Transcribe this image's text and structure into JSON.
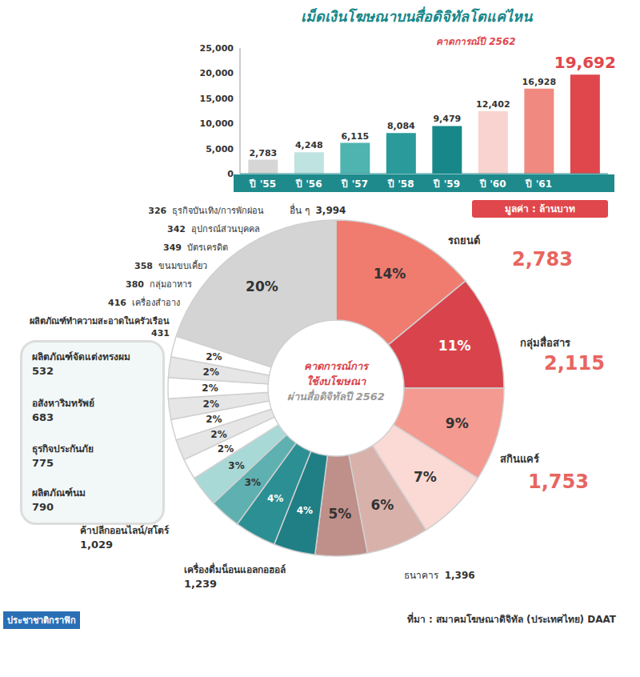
{
  "title": "เม็ดเงินโฆษณาบนสื่อดิจิทัลโตแค่ไหน",
  "unit_note": "มูลค่า : ล้านบาท",
  "source": "ที่มา : สมาคมโฆษณาดิจิทัล (ประเทศไทย) DAAT",
  "credit": "ประชาชาติกราฟิก",
  "chart_data": [
    {
      "type": "bar",
      "categories": [
        "ปี '55",
        "ปี '56",
        "ปี '57",
        "ปี '58",
        "ปี '59",
        "ปี '60",
        "ปี '61",
        null
      ],
      "values": [
        2783,
        4248,
        6115,
        8084,
        9479,
        12402,
        16928,
        19692
      ],
      "value_labels": [
        "2,783",
        "4,248",
        "6,115",
        "8,084",
        "9,479",
        "12,402",
        "16,928",
        "19,692"
      ],
      "data_labels": true,
      "colors": [
        "#d6d6d6",
        "#bfe3e0",
        "#4fb3b0",
        "#2a9a9a",
        "#17878a",
        "#f9d3cf",
        "#f08a80",
        "#e0474c"
      ],
      "ylim": [
        0,
        25000
      ],
      "yticks": [
        0,
        {
          "value": 5000,
          "label": "5,000"
        },
        {
          "value": 10000,
          "label": "10,000"
        },
        {
          "value": 15000,
          "label": "15,000"
        },
        {
          "value": 20000,
          "label": "20,000"
        },
        {
          "value": 25000,
          "label": "25,000"
        }
      ],
      "grid": false,
      "annotation": "คาดการณ์ปี 2562"
    },
    {
      "type": "pie",
      "center_text": [
        "คาดการณ์การ",
        "ใช้งบโฆษณา",
        "ผ่านสื่อดิจิทัลปี 2562"
      ],
      "categories": [
        "รถยนต์",
        "กลุ่มสื่อสาร",
        "สกินแคร์",
        "ธนาคาร",
        "เครื่องดื่มน็อนแอลกอฮอล์",
        "ค้าปลีกออนไลน์/สโตร์",
        "ผลิตภัณฑ์นม",
        "ธุรกิจประกันภัย",
        "อสังหาริมทรัพย์",
        "ผลิตภัณฑ์จัดแต่งทรงผม",
        "ผลิตภัณฑ์ทำความสะอาดในครัวเรือน",
        "เครื่องสำอาง",
        "กลุ่มอาหาร",
        "ขนมขบเคี้ยว",
        "บัตรเครดิต",
        "อุปกรณ์ส่วนบุคคล",
        "ธุรกิจบันเทิง/การพักผ่อน",
        "อื่น ๆ"
      ],
      "values": [
        14,
        11,
        9,
        7,
        6,
        5,
        4,
        4,
        3,
        3,
        2,
        2,
        2,
        2,
        2,
        2,
        2,
        20
      ],
      "value_labels": [
        "14%",
        "11%",
        "9%",
        "7%",
        "6%",
        "5%",
        "4%",
        "4%",
        "3%",
        "3%",
        "2%",
        "2%",
        "2%",
        "2%",
        "2%",
        "2%",
        "2%",
        "20%"
      ],
      "amounts": [
        2783,
        2115,
        1753,
        1396,
        1239,
        1029,
        790,
        775,
        683,
        532,
        431,
        416,
        380,
        358,
        349,
        342,
        326,
        3994
      ],
      "amount_labels": [
        "2,783",
        "2,115",
        "1,753",
        "1,396",
        "1,239",
        "1,029",
        "790",
        "775",
        "683",
        "532",
        "431",
        "416",
        "380",
        "358",
        "349",
        "342",
        "326",
        "3,994"
      ],
      "data_labels": true,
      "colors": [
        "#f07b6f",
        "#d9434b",
        "#f49a90",
        "#fbd9d4",
        "#d9b1ab",
        "#bf8f8a",
        "#1f7f85",
        "#2c8f93",
        "#5fb0b0",
        "#a9d9d6",
        "#ffffff",
        "#e6e6e6",
        "#ffffff",
        "#e6e6e6",
        "#ffffff",
        "#e6e6e6",
        "#ffffff",
        "#d4d4d4"
      ]
    }
  ]
}
